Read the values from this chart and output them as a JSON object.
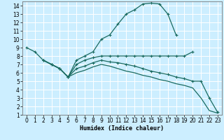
{
  "xlabel": "Humidex (Indice chaleur)",
  "bg_color": "#cceeff",
  "grid_color": "#ffffff",
  "line_color": "#1a6b60",
  "xlim": [
    -0.5,
    23.5
  ],
  "ylim": [
    1,
    14.5
  ],
  "xticks": [
    0,
    1,
    2,
    3,
    4,
    5,
    6,
    7,
    8,
    9,
    10,
    11,
    12,
    13,
    14,
    15,
    16,
    17,
    18,
    19,
    20,
    21,
    22,
    23
  ],
  "yticks": [
    1,
    2,
    3,
    4,
    5,
    6,
    7,
    8,
    9,
    10,
    11,
    12,
    13,
    14
  ],
  "line1_x": [
    0,
    1,
    2,
    3,
    4,
    5,
    6,
    7,
    8,
    9,
    10,
    11,
    12,
    13,
    14,
    15,
    16,
    17,
    18
  ],
  "line1_y": [
    9,
    8.5,
    7.5,
    7.0,
    6.5,
    5.5,
    7.5,
    8.0,
    8.5,
    10.0,
    10.5,
    11.8,
    13.0,
    13.5,
    14.2,
    14.3,
    14.2,
    13.0,
    10.5
  ],
  "line2_x": [
    2,
    3,
    4,
    5,
    6,
    7,
    8,
    9,
    10,
    11,
    12,
    13,
    14,
    15,
    16,
    17,
    18,
    19,
    20
  ],
  "line2_y": [
    7.5,
    7.0,
    6.5,
    5.5,
    7.0,
    7.5,
    7.8,
    8.0,
    8.0,
    8.0,
    8.0,
    8.0,
    8.0,
    8.0,
    8.0,
    8.0,
    8.0,
    8.0,
    8.5
  ],
  "line3_x": [
    2,
    3,
    4,
    5,
    6,
    7,
    8,
    9,
    10,
    11,
    12,
    13,
    14,
    15,
    16,
    17,
    18,
    19,
    20,
    21,
    22,
    23
  ],
  "line3_y": [
    7.5,
    7.0,
    6.5,
    5.5,
    6.5,
    6.8,
    7.2,
    7.5,
    7.3,
    7.2,
    7.0,
    6.8,
    6.5,
    6.2,
    6.0,
    5.8,
    5.5,
    5.3,
    5.0,
    5.0,
    3.0,
    1.3
  ],
  "line4_x": [
    2,
    3,
    4,
    5,
    6,
    7,
    8,
    9,
    10,
    11,
    12,
    13,
    14,
    15,
    16,
    17,
    18,
    19,
    20,
    21,
    22,
    23
  ],
  "line4_y": [
    7.5,
    7.0,
    6.5,
    5.5,
    6.0,
    6.3,
    6.7,
    7.0,
    6.8,
    6.5,
    6.2,
    6.0,
    5.7,
    5.5,
    5.2,
    5.0,
    4.7,
    4.5,
    4.2,
    3.0,
    1.5,
    1.2
  ]
}
